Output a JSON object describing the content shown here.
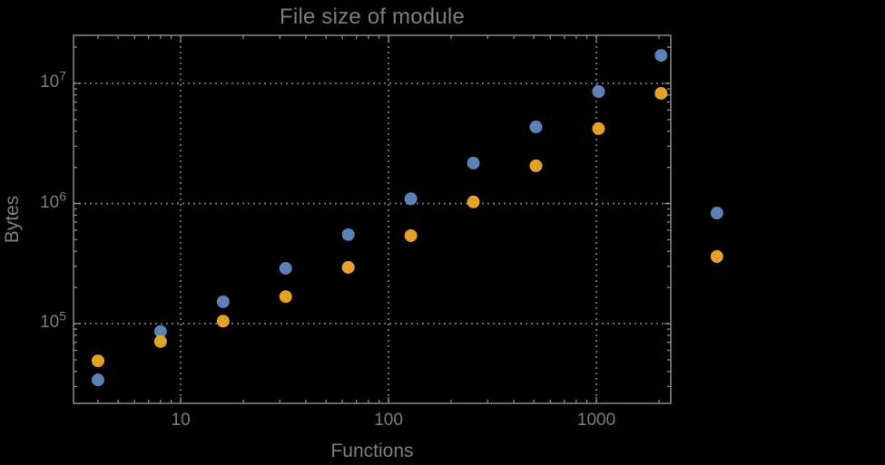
{
  "colors": {
    "background": "#000000",
    "text": "#7d7d7d",
    "frame": "#8a8a8a",
    "gridlines": "#6e6e6e",
    "series_blue": "#5e81b5",
    "series_orange": "#e5a127"
  },
  "chart_data": {
    "type": "scatter",
    "title": "File size of module",
    "xlabel": "Functions",
    "ylabel": "Bytes",
    "xscale": "log",
    "yscale": "log",
    "xlim": [
      3.05,
      2280
    ],
    "ylim": [
      21700,
      25100000
    ],
    "grid": "dotted",
    "legend": "none",
    "frame": true,
    "x_ticks": [
      {
        "value": 10,
        "label": "10"
      },
      {
        "value": 100,
        "label": "100"
      },
      {
        "value": 1000,
        "label": "1000"
      }
    ],
    "y_ticks": [
      {
        "value": 100000,
        "base": "10",
        "exp": "5"
      },
      {
        "value": 1000000,
        "base": "10",
        "exp": "6"
      },
      {
        "value": 10000000,
        "base": "10",
        "exp": "7"
      }
    ],
    "series": [
      {
        "name": "blue-series",
        "color": "#5e81b5",
        "points": [
          [
            4,
            34000
          ],
          [
            8,
            86000
          ],
          [
            16,
            152000
          ],
          [
            32,
            289000
          ],
          [
            64,
            550000
          ],
          [
            128,
            1095000
          ],
          [
            256,
            2170000
          ],
          [
            512,
            4340000
          ],
          [
            1024,
            8550000
          ],
          [
            2048,
            17100000
          ],
          [
            3800,
            833000
          ]
        ]
      },
      {
        "name": "orange-series",
        "color": "#e5a127",
        "points": [
          [
            4,
            49000
          ],
          [
            8,
            71000
          ],
          [
            16,
            105000
          ],
          [
            32,
            168000
          ],
          [
            64,
            294000
          ],
          [
            128,
            540000
          ],
          [
            256,
            1030000
          ],
          [
            512,
            2060000
          ],
          [
            1024,
            4200000
          ],
          [
            2048,
            8260000
          ],
          [
            3800,
            362000
          ]
        ]
      }
    ]
  }
}
